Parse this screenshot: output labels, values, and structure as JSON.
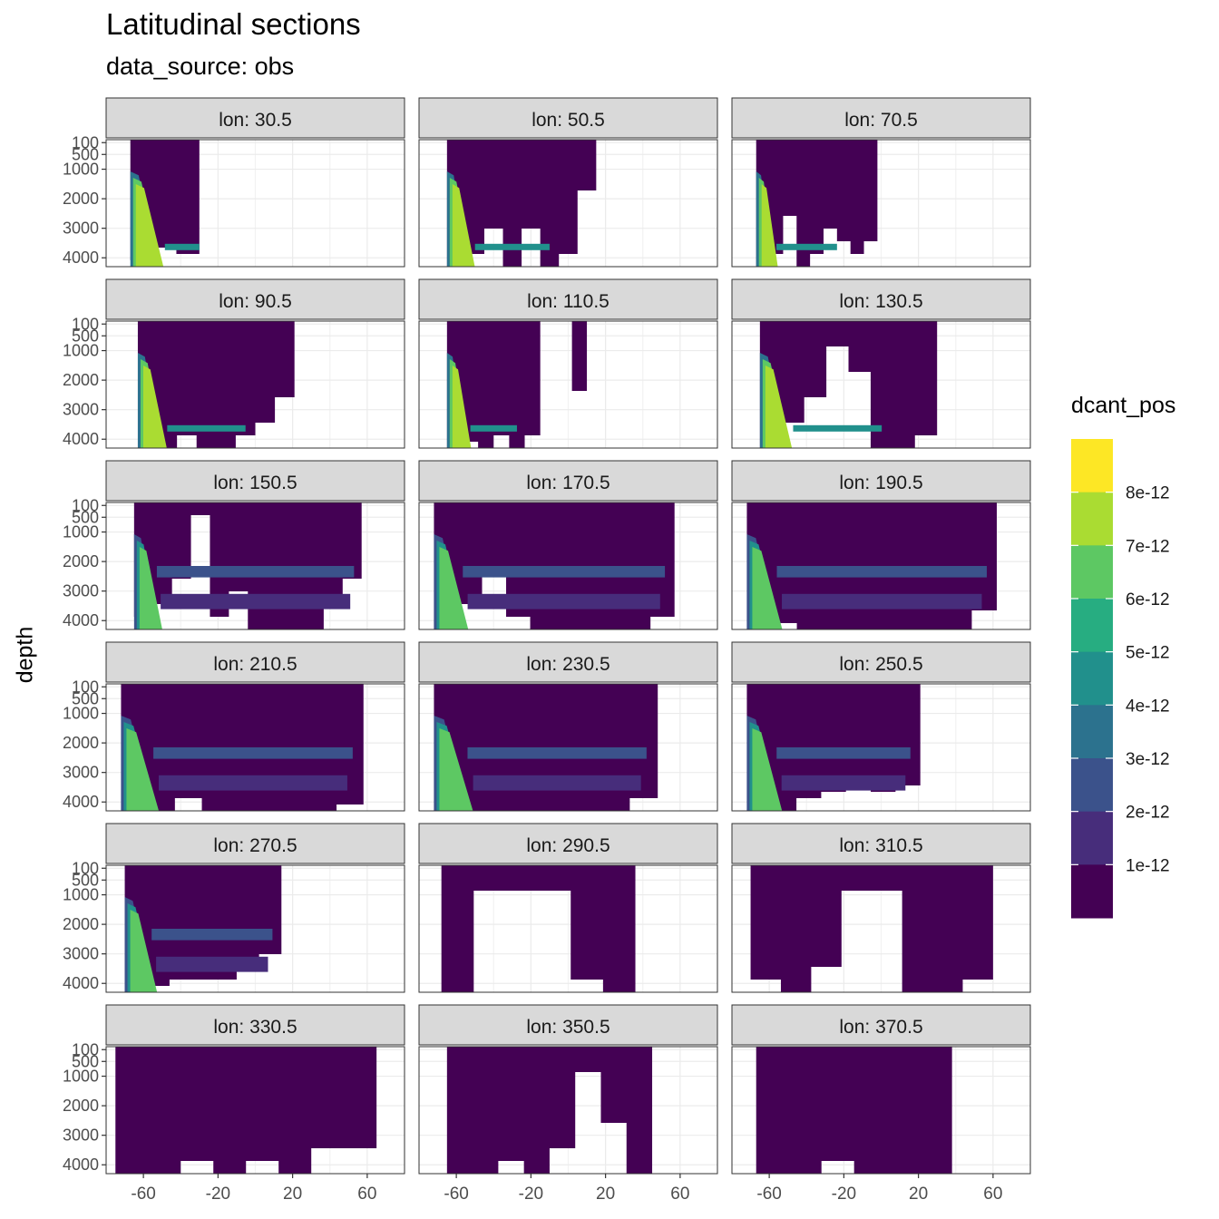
{
  "title": "Latitudinal sections",
  "subtitle": "data_source: obs",
  "y_axis_label": "depth",
  "chart_data": {
    "type": "heatmap",
    "facet_var": "lon",
    "panels": [
      "lon: 30.5",
      "lon: 50.5",
      "lon: 70.5",
      "lon: 90.5",
      "lon: 110.5",
      "lon: 130.5",
      "lon: 150.5",
      "lon: 170.5",
      "lon: 190.5",
      "lon: 210.5",
      "lon: 230.5",
      "lon: 250.5",
      "lon: 270.5",
      "lon: 290.5",
      "lon: 310.5",
      "lon: 330.5",
      "lon: 350.5",
      "lon: 370.5"
    ],
    "x_ticks": [
      -60,
      -20,
      20,
      60
    ],
    "xlim": [
      -80,
      80
    ],
    "y_ticks": [
      100,
      500,
      1000,
      2000,
      3000,
      4000
    ],
    "y_reversed": true,
    "fill_var": "dcant_pos",
    "legend_labels": [
      "1e-12",
      "2e-12",
      "3e-12",
      "4e-12",
      "5e-12",
      "6e-12",
      "7e-12",
      "8e-12"
    ],
    "palette": [
      "#440154",
      "#472D7B",
      "#3B528B",
      "#2C728E",
      "#21908C",
      "#27AD81",
      "#5DC863",
      "#AADC32",
      "#FDE725"
    ],
    "grid": true,
    "legend_position": "right"
  }
}
